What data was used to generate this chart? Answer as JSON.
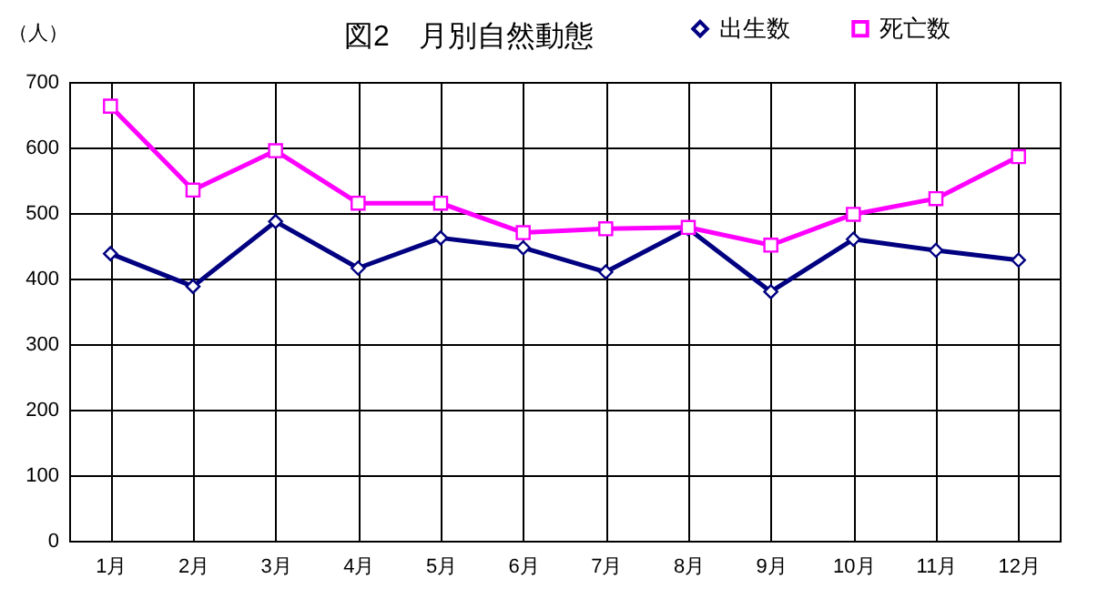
{
  "chart_data": {
    "type": "line",
    "title": "図2　月別自然動態",
    "ylabel": "（人）",
    "categories": [
      "1月",
      "2月",
      "3月",
      "4月",
      "5月",
      "6月",
      "7月",
      "8月",
      "9月",
      "10月",
      "11月",
      "12月"
    ],
    "series": [
      {
        "name": "出生数",
        "color": "#000080",
        "marker": "diamond",
        "values": [
          438,
          388,
          487,
          416,
          462,
          447,
          410,
          476,
          380,
          460,
          443,
          428
        ]
      },
      {
        "name": "死亡数",
        "color": "#ff00ff",
        "marker": "square",
        "values": [
          663,
          535,
          595,
          515,
          515,
          470,
          476,
          478,
          451,
          498,
          522,
          586
        ]
      }
    ],
    "ylim": [
      0,
      700
    ],
    "yticks": [
      0,
      100,
      200,
      300,
      400,
      500,
      600,
      700
    ],
    "grid": true,
    "legend": "top right"
  }
}
